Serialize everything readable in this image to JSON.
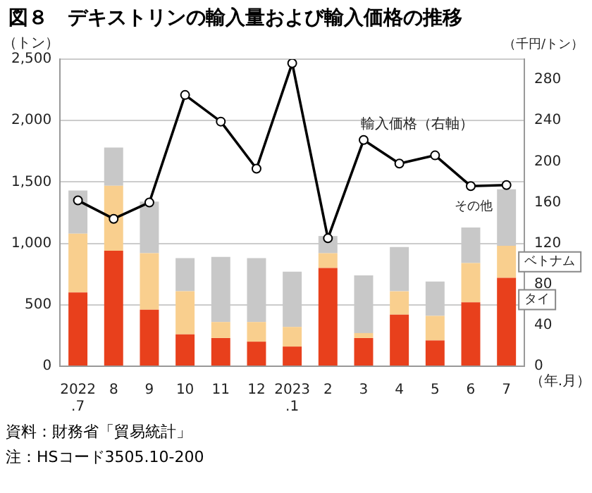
{
  "chart_data": {
    "type": "bar",
    "stacked": true,
    "title": "図８　デキストリンの輸入量および輸入価格の推移",
    "ylabel": "（トン）",
    "y2label": "（千円/トン）",
    "xlabel": "（年.月）",
    "categories": [
      "2022\n.7",
      "8",
      "9",
      "10",
      "11",
      "12",
      "2023\n.1",
      "2",
      "3",
      "4",
      "5",
      "6",
      "7"
    ],
    "series": [
      {
        "name": "タイ",
        "color": "#e8401c",
        "values": [
          600,
          940,
          460,
          260,
          230,
          200,
          160,
          800,
          230,
          420,
          210,
          520,
          720
        ]
      },
      {
        "name": "ベトナム",
        "color": "#f9cf8e",
        "values": [
          480,
          530,
          460,
          350,
          130,
          160,
          160,
          120,
          40,
          190,
          200,
          320,
          260
        ]
      },
      {
        "name": "その他",
        "color": "#c8c8c8",
        "values": [
          350,
          310,
          420,
          270,
          530,
          520,
          450,
          140,
          470,
          360,
          280,
          290,
          460
        ]
      },
      {
        "name": "輸入価格（右軸）",
        "type": "line",
        "axis": "y2",
        "color": "#000000",
        "marker": "circle",
        "values": [
          162,
          144,
          160,
          265,
          239,
          193,
          296,
          125,
          221,
          198,
          206,
          176,
          177
        ]
      }
    ],
    "ylim": [
      0,
      2500
    ],
    "yticks": [
      {
        "value": 0,
        "label": "0"
      },
      {
        "value": 500,
        "label": "500"
      },
      {
        "value": 1000,
        "label": "1,000"
      },
      {
        "value": 1500,
        "label": "1,500"
      },
      {
        "value": 2000,
        "label": "2,000"
      },
      {
        "value": 2500,
        "label": "2,500"
      }
    ],
    "y2lim": [
      0,
      300
    ],
    "y2ticks": [
      0,
      40,
      80,
      120,
      160,
      200,
      240,
      280
    ],
    "grid": "y",
    "legend": false,
    "annotations": [
      "資料：財務省「貿易統計」",
      "注：HSコード3505.10-200"
    ]
  }
}
